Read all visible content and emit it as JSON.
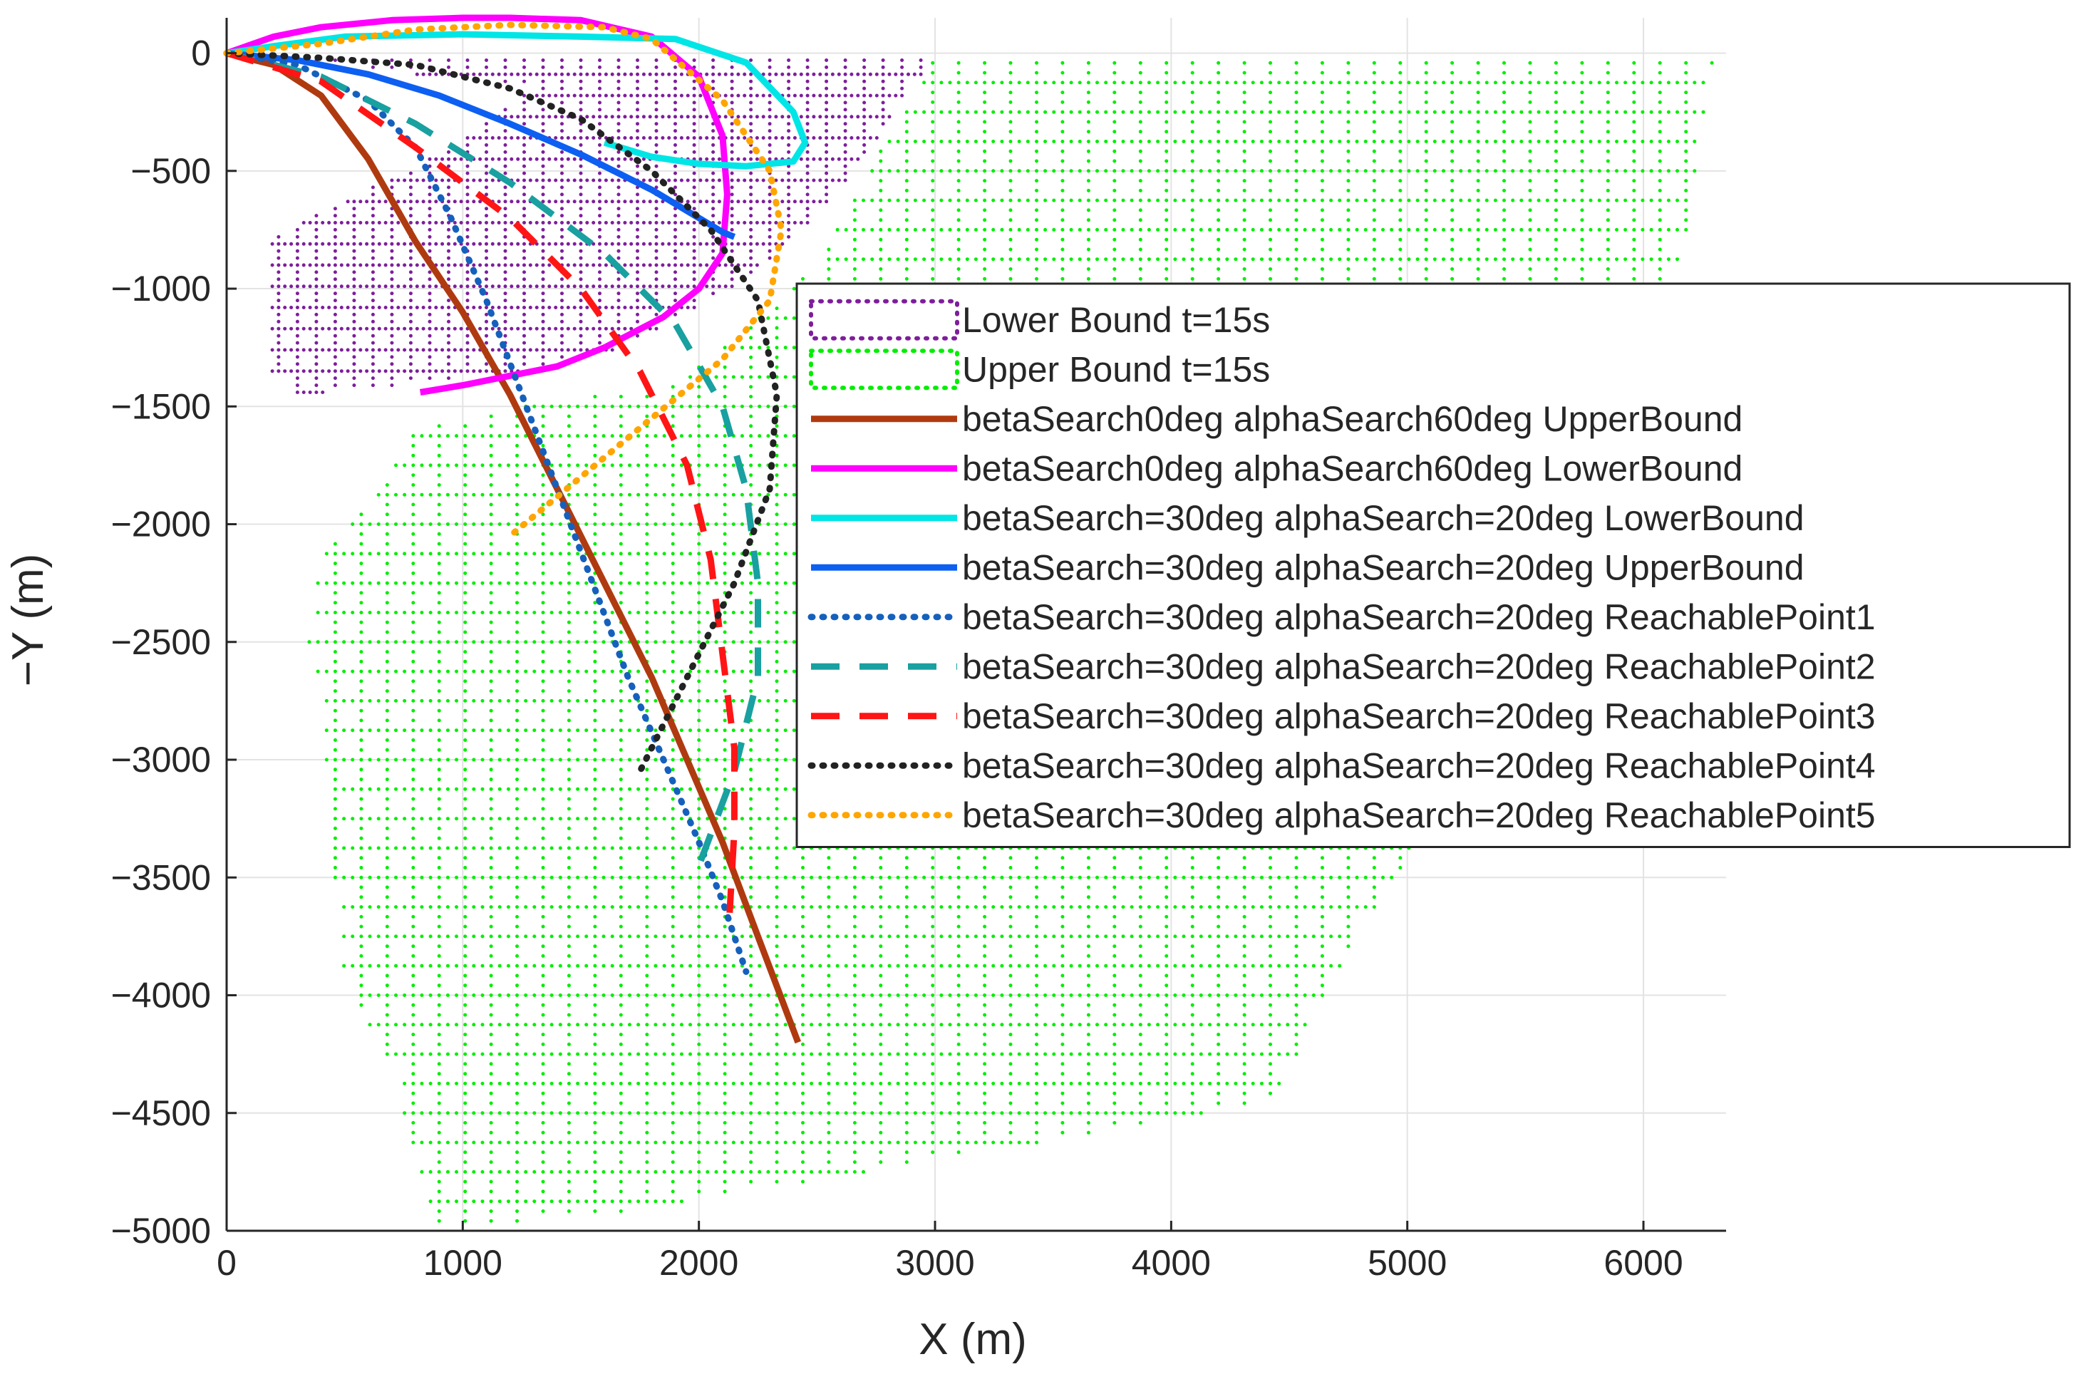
{
  "chart_data": {
    "type": "line",
    "title": "",
    "xlabel": "X (m)",
    "ylabel": "−Y (m)",
    "xlim": [
      0,
      6350
    ],
    "ylim": [
      -5000,
      150
    ],
    "xticks": [
      0,
      1000,
      2000,
      3000,
      4000,
      5000,
      6000
    ],
    "xtick_labels": [
      "0",
      "1000",
      "2000",
      "3000",
      "4000",
      "5000",
      "6000"
    ],
    "yticks": [
      0,
      -500,
      -1000,
      -1500,
      -2000,
      -2500,
      -3000,
      -3500,
      -4000,
      -4500,
      -5000
    ],
    "ytick_labels": [
      "0",
      "−500",
      "−1000",
      "−1500",
      "−2000",
      "−2500",
      "−3000",
      "−3500",
      "−4000",
      "−4500",
      "−5000"
    ],
    "grid": true,
    "legend_position": "right",
    "regions": [
      {
        "name": "Lower Bound t=15s",
        "color": "#7e1e9c",
        "style": "dotted-region",
        "spacing": [
          80,
          90
        ],
        "polygon": [
          [
            60,
            0
          ],
          [
            3000,
            0
          ],
          [
            2800,
            -300
          ],
          [
            2500,
            -700
          ],
          [
            2150,
            -1000
          ],
          [
            1700,
            -1250
          ],
          [
            1250,
            -1350
          ],
          [
            700,
            -1420
          ],
          [
            300,
            -1450
          ],
          [
            190,
            -1350
          ],
          [
            180,
            -800
          ],
          [
            450,
            -650
          ],
          [
            800,
            -480
          ],
          [
            1100,
            -300
          ],
          [
            1300,
            -150
          ]
        ]
      },
      {
        "name": "Upper Bound t=15s",
        "color": "#00ee00",
        "style": "dotted-region",
        "spacing": [
          110,
          125
        ],
        "polygon": [
          [
            3000,
            0
          ],
          [
            6300,
            0
          ],
          [
            6250,
            -300
          ],
          [
            6150,
            -1000
          ],
          [
            5600,
            -2000
          ],
          [
            5400,
            -2800
          ],
          [
            5050,
            -3350
          ],
          [
            4750,
            -3800
          ],
          [
            4450,
            -4450
          ],
          [
            3300,
            -4650
          ],
          [
            1500,
            -4950
          ],
          [
            900,
            -4980
          ],
          [
            800,
            -4700
          ],
          [
            700,
            -4300
          ],
          [
            480,
            -3900
          ],
          [
            450,
            -3300
          ],
          [
            400,
            -2800
          ],
          [
            350,
            -2500
          ],
          [
            370,
            -2150
          ],
          [
            650,
            -1850
          ],
          [
            800,
            -1600
          ],
          [
            1200,
            -1500
          ],
          [
            1900,
            -1400
          ],
          [
            2500,
            -900
          ],
          [
            3000,
            0
          ]
        ]
      }
    ],
    "series": [
      {
        "name": "betaSearch0deg alphaSearch60deg UpperBound",
        "color": "#b03a10",
        "style": "solid",
        "x": [
          0,
          200,
          400,
          600,
          800,
          1000,
          1200,
          1400,
          1600,
          1800,
          1950,
          2100,
          2250,
          2420
        ],
        "y": [
          0,
          -50,
          -180,
          -450,
          -800,
          -1100,
          -1450,
          -1850,
          -2250,
          -2650,
          -3000,
          -3350,
          -3750,
          -4200
        ]
      },
      {
        "name": "betaSearch0deg alphaSearch60deg LowerBound",
        "color": "#ff00ff",
        "style": "solid",
        "x": [
          0,
          200,
          400,
          700,
          1000,
          1200,
          1500,
          1800,
          2000,
          2100,
          2120,
          2100,
          2000,
          1850,
          1600,
          1400,
          1200,
          1000,
          820
        ],
        "y": [
          0,
          70,
          110,
          140,
          150,
          150,
          140,
          70,
          -100,
          -350,
          -600,
          -850,
          -1000,
          -1120,
          -1250,
          -1330,
          -1370,
          -1410,
          -1440
        ]
      },
      {
        "name": "betaSearch=30deg alphaSearch=20deg LowerBound",
        "color": "#00e5e5",
        "style": "solid",
        "x": [
          0,
          200,
          500,
          1000,
          1500,
          1900,
          2200,
          2400,
          2450,
          2400,
          2200,
          2000,
          1800,
          1600
        ],
        "y": [
          0,
          30,
          70,
          80,
          70,
          60,
          -40,
          -250,
          -380,
          -460,
          -480,
          -470,
          -440,
          -380
        ]
      },
      {
        "name": "betaSearch=30deg alphaSearch=20deg UpperBound",
        "color": "#0d5ff2",
        "style": "solid",
        "x": [
          0,
          300,
          600,
          900,
          1200,
          1500,
          1800,
          2000,
          2100,
          2150
        ],
        "y": [
          0,
          -30,
          -90,
          -180,
          -300,
          -430,
          -580,
          -700,
          -760,
          -780
        ]
      },
      {
        "name": "betaSearch=30deg alphaSearch=20deg ReachablePoint1",
        "color": "#1560bd",
        "style": "dotted",
        "x": [
          0,
          300,
          600,
          800,
          950,
          1100,
          1250,
          1400,
          1550,
          1700,
          1850,
          2000,
          2100,
          2200
        ],
        "y": [
          0,
          -50,
          -200,
          -400,
          -700,
          -1050,
          -1450,
          -1850,
          -2250,
          -2650,
          -3000,
          -3350,
          -3600,
          -3900
        ]
      },
      {
        "name": "betaSearch=30deg alphaSearch=20deg ReachablePoint2",
        "color": "#19a0a0",
        "style": "dashed",
        "x": [
          0,
          400,
          800,
          1200,
          1600,
          1900,
          2100,
          2200,
          2250,
          2250,
          2150,
          2000
        ],
        "y": [
          0,
          -100,
          -300,
          -550,
          -850,
          -1150,
          -1500,
          -1850,
          -2250,
          -2650,
          -3050,
          -3450
        ]
      },
      {
        "name": "betaSearch=30deg alphaSearch=20deg ReachablePoint3",
        "color": "#ff1515",
        "style": "dashed",
        "x": [
          0,
          400,
          800,
          1200,
          1500,
          1750,
          1950,
          2050,
          2100,
          2150,
          2150,
          2130
        ],
        "y": [
          0,
          -120,
          -400,
          -700,
          -1000,
          -1350,
          -1750,
          -2150,
          -2550,
          -2950,
          -3300,
          -3650
        ]
      },
      {
        "name": "betaSearch=30deg alphaSearch=20deg ReachablePoint4",
        "color": "#222222",
        "style": "dotted",
        "x": [
          0,
          400,
          800,
          1200,
          1500,
          1800,
          2050,
          2250,
          2330,
          2300,
          2150,
          2000,
          1850,
          1750
        ],
        "y": [
          0,
          -20,
          -50,
          -150,
          -280,
          -500,
          -750,
          -1050,
          -1450,
          -1850,
          -2250,
          -2550,
          -2850,
          -3050
        ]
      },
      {
        "name": "betaSearch=30deg alphaSearch=20deg ReachablePoint5",
        "color": "#ffa500",
        "style": "dotted",
        "x": [
          0,
          400,
          800,
          1200,
          1600,
          1800,
          2100,
          2300,
          2350,
          2300,
          2100,
          1800,
          1500,
          1200
        ],
        "y": [
          0,
          40,
          100,
          120,
          110,
          60,
          -200,
          -500,
          -750,
          -1050,
          -1300,
          -1550,
          -1800,
          -2050
        ]
      }
    ]
  }
}
